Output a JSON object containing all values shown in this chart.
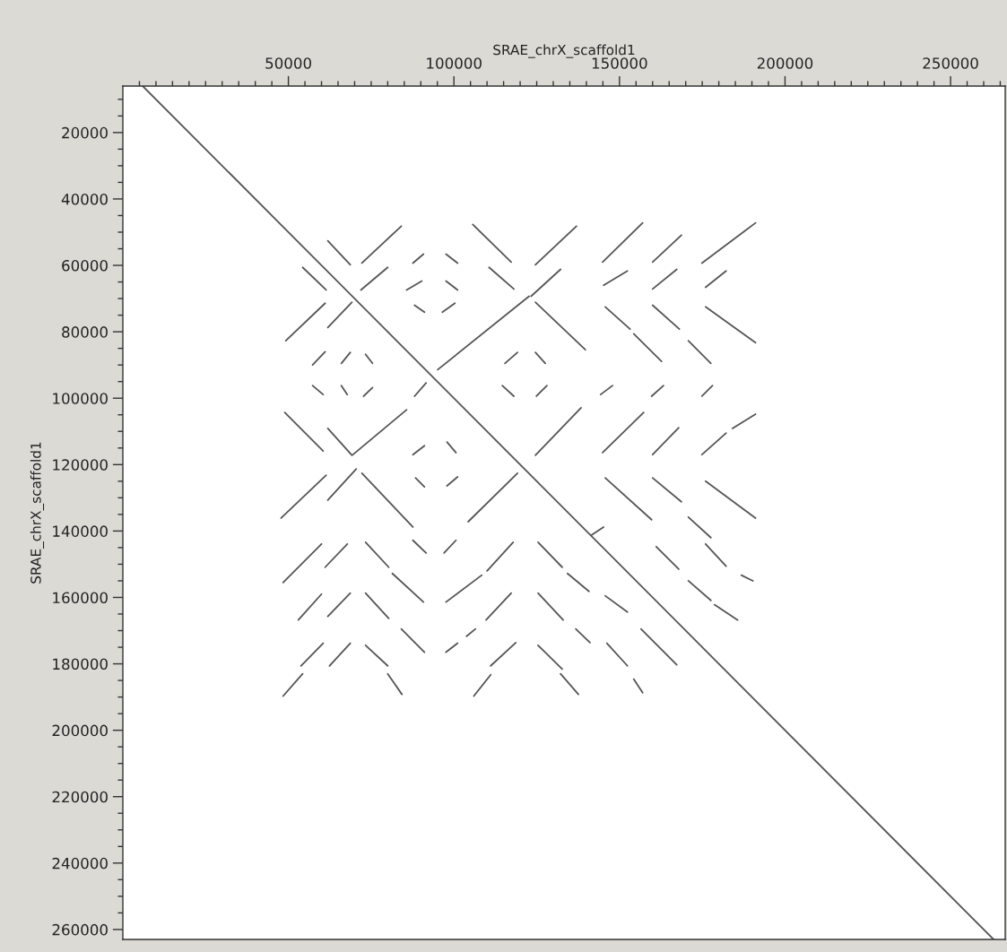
{
  "chart_data": {
    "type": "line",
    "xlabel": "SRAE_chrX_scaffold1",
    "ylabel": "SRAE_chrX_scaffold1",
    "xlim": [
      0,
      266500
    ],
    "ylim": [
      263000,
      6000
    ],
    "xticks": [
      {
        "value": 5000,
        "label": null
      },
      {
        "value": 10000,
        "label": null
      },
      {
        "value": 15000,
        "label": null
      },
      {
        "value": 20000,
        "label": null
      },
      {
        "value": 25000,
        "label": null
      },
      {
        "value": 30000,
        "label": null
      },
      {
        "value": 35000,
        "label": null
      },
      {
        "value": 40000,
        "label": null
      },
      {
        "value": 45000,
        "label": null
      },
      50000,
      {
        "value": 55000,
        "label": null
      },
      {
        "value": 60000,
        "label": null
      },
      {
        "value": 65000,
        "label": null
      },
      {
        "value": 70000,
        "label": null
      },
      {
        "value": 75000,
        "label": null
      },
      {
        "value": 80000,
        "label": null
      },
      {
        "value": 85000,
        "label": null
      },
      {
        "value": 90000,
        "label": null
      },
      {
        "value": 95000,
        "label": null
      },
      100000,
      {
        "value": 105000,
        "label": null
      },
      {
        "value": 110000,
        "label": null
      },
      {
        "value": 115000,
        "label": null
      },
      {
        "value": 120000,
        "label": null
      },
      {
        "value": 125000,
        "label": null
      },
      {
        "value": 130000,
        "label": null
      },
      {
        "value": 135000,
        "label": null
      },
      {
        "value": 140000,
        "label": null
      },
      {
        "value": 145000,
        "label": null
      },
      150000,
      {
        "value": 155000,
        "label": null
      },
      {
        "value": 160000,
        "label": null
      },
      {
        "value": 165000,
        "label": null
      },
      {
        "value": 170000,
        "label": null
      },
      {
        "value": 175000,
        "label": null
      },
      {
        "value": 180000,
        "label": null
      },
      {
        "value": 185000,
        "label": null
      },
      {
        "value": 190000,
        "label": null
      },
      {
        "value": 195000,
        "label": null
      },
      200000,
      {
        "value": 205000,
        "label": null
      },
      {
        "value": 210000,
        "label": null
      },
      {
        "value": 215000,
        "label": null
      },
      {
        "value": 220000,
        "label": null
      },
      {
        "value": 225000,
        "label": null
      },
      {
        "value": 230000,
        "label": null
      },
      {
        "value": 235000,
        "label": null
      },
      {
        "value": 240000,
        "label": null
      },
      {
        "value": 245000,
        "label": null
      },
      250000,
      {
        "value": 255000,
        "label": null
      },
      {
        "value": 260000,
        "label": null
      },
      {
        "value": 265000,
        "label": null
      }
    ],
    "yticks": [
      {
        "value": 10000,
        "label": null
      },
      {
        "value": 15000,
        "label": null
      },
      20000,
      {
        "value": 25000,
        "label": null
      },
      {
        "value": 30000,
        "label": null
      },
      {
        "value": 35000,
        "label": null
      },
      40000,
      {
        "value": 45000,
        "label": null
      },
      {
        "value": 50000,
        "label": null
      },
      {
        "value": 55000,
        "label": null
      },
      60000,
      {
        "value": 65000,
        "label": null
      },
      {
        "value": 70000,
        "label": null
      },
      {
        "value": 75000,
        "label": null
      },
      80000,
      {
        "value": 85000,
        "label": null
      },
      {
        "value": 90000,
        "label": null
      },
      {
        "value": 95000,
        "label": null
      },
      100000,
      {
        "value": 105000,
        "label": null
      },
      {
        "value": 110000,
        "label": null
      },
      {
        "value": 115000,
        "label": null
      },
      120000,
      {
        "value": 125000,
        "label": null
      },
      {
        "value": 130000,
        "label": null
      },
      {
        "value": 135000,
        "label": null
      },
      140000,
      {
        "value": 145000,
        "label": null
      },
      {
        "value": 150000,
        "label": null
      },
      {
        "value": 155000,
        "label": null
      },
      160000,
      {
        "value": 165000,
        "label": null
      },
      {
        "value": 170000,
        "label": null
      },
      {
        "value": 175000,
        "label": null
      },
      180000,
      {
        "value": 185000,
        "label": null
      },
      {
        "value": 190000,
        "label": null
      },
      {
        "value": 195000,
        "label": null
      },
      200000,
      {
        "value": 205000,
        "label": null
      },
      {
        "value": 210000,
        "label": null
      },
      {
        "value": 215000,
        "label": null
      },
      220000,
      {
        "value": 225000,
        "label": null
      },
      {
        "value": 230000,
        "label": null
      },
      {
        "value": 235000,
        "label": null
      },
      240000,
      {
        "value": 245000,
        "label": null
      },
      {
        "value": 250000,
        "label": null
      },
      {
        "value": 255000,
        "label": null
      },
      260000
    ],
    "series": [
      {
        "color": "#555555",
        "x": [
          6000,
          263000
        ],
        "values": [
          6000,
          263000
        ]
      },
      {
        "color": "#555555",
        "x": [
          61900,
          68700
        ],
        "values": [
          52600,
          59800
        ]
      },
      {
        "color": "#555555",
        "x": [
          72200,
          84100
        ],
        "values": [
          59300,
          48200
        ]
      },
      {
        "color": "#555555",
        "x": [
          87600,
          90800
        ],
        "values": [
          59300,
          56600
        ]
      },
      {
        "color": "#555555",
        "x": [
          97600,
          101100
        ],
        "values": [
          56600,
          59300
        ]
      },
      {
        "color": "#555555",
        "x": [
          105700,
          117300
        ],
        "values": [
          47700,
          59000
        ]
      },
      {
        "color": "#555555",
        "x": [
          124600,
          137000
        ],
        "values": [
          59800,
          48200
        ]
      },
      {
        "color": "#555555",
        "x": [
          144900,
          157000
        ],
        "values": [
          59000,
          47200
        ]
      },
      {
        "color": "#555555",
        "x": [
          160000,
          168700
        ],
        "values": [
          59000,
          50900
        ]
      },
      {
        "color": "#555555",
        "x": [
          174900,
          191100
        ],
        "values": [
          59300,
          47200
        ]
      },
      {
        "color": "#555555",
        "x": [
          54300,
          61400
        ],
        "values": [
          60600,
          67400
        ]
      },
      {
        "color": "#555555",
        "x": [
          71900,
          80000
        ],
        "values": [
          67400,
          60600
        ]
      },
      {
        "color": "#555555",
        "x": [
          85700,
          90300
        ],
        "values": [
          67400,
          64700
        ]
      },
      {
        "color": "#555555",
        "x": [
          97600,
          101100
        ],
        "values": [
          64700,
          67400
        ]
      },
      {
        "color": "#555555",
        "x": [
          110600,
          118100
        ],
        "values": [
          60600,
          67100
        ]
      },
      {
        "color": "#555555",
        "x": [
          123300,
          132200
        ],
        "values": [
          69300,
          61200
        ]
      },
      {
        "color": "#555555",
        "x": [
          145200,
          152400
        ],
        "values": [
          66000,
          61700
        ]
      },
      {
        "color": "#555555",
        "x": [
          160000,
          167300
        ],
        "values": [
          67100,
          61200
        ]
      },
      {
        "color": "#555555",
        "x": [
          176000,
          182200
        ],
        "values": [
          66600,
          61700
        ]
      },
      {
        "color": "#555555",
        "x": [
          49200,
          61100
        ],
        "values": [
          82700,
          71400
        ]
      },
      {
        "color": "#555555",
        "x": [
          61900,
          69200
        ],
        "values": [
          78700,
          71100
        ]
      },
      {
        "color": "#555555",
        "x": [
          88100,
          91100
        ],
        "values": [
          72000,
          74100
        ]
      },
      {
        "color": "#555555",
        "x": [
          96500,
          100300
        ],
        "values": [
          74100,
          71400
        ]
      },
      {
        "color": "#555555",
        "x": [
          124600,
          139700
        ],
        "values": [
          71100,
          85400
        ]
      },
      {
        "color": "#555555",
        "x": [
          145700,
          153200
        ],
        "values": [
          72500,
          79200
        ]
      },
      {
        "color": "#555555",
        "x": [
          154300,
          162700
        ],
        "values": [
          80600,
          88900
        ]
      },
      {
        "color": "#555555",
        "x": [
          160000,
          168100
        ],
        "values": [
          72000,
          79200
        ]
      },
      {
        "color": "#555555",
        "x": [
          170800,
          177600
        ],
        "values": [
          82700,
          89500
        ]
      },
      {
        "color": "#555555",
        "x": [
          176000,
          191100
        ],
        "values": [
          72500,
          83300
        ]
      },
      {
        "color": "#555555",
        "x": [
          95100,
          122700
        ],
        "values": [
          91400,
          69300
        ]
      },
      {
        "color": "#555555",
        "x": [
          57300,
          61100
        ],
        "values": [
          90000,
          86000
        ]
      },
      {
        "color": "#555555",
        "x": [
          66000,
          68700
        ],
        "values": [
          89500,
          86200
        ]
      },
      {
        "color": "#555555",
        "x": [
          73300,
          75400
        ],
        "values": [
          86800,
          89500
        ]
      },
      {
        "color": "#555555",
        "x": [
          57300,
          60500
        ],
        "values": [
          96200,
          98900
        ]
      },
      {
        "color": "#555555",
        "x": [
          66000,
          67800
        ],
        "values": [
          96200,
          98900
        ]
      },
      {
        "color": "#555555",
        "x": [
          72700,
          75400
        ],
        "values": [
          99400,
          96800
        ]
      },
      {
        "color": "#555555",
        "x": [
          115400,
          119200
        ],
        "values": [
          89500,
          86200
        ]
      },
      {
        "color": "#555555",
        "x": [
          124600,
          127600
        ],
        "values": [
          86200,
          89500
        ]
      },
      {
        "color": "#555555",
        "x": [
          114600,
          118100
        ],
        "values": [
          96200,
          99400
        ]
      },
      {
        "color": "#555555",
        "x": [
          124900,
          128100
        ],
        "values": [
          99400,
          96200
        ]
      },
      {
        "color": "#555555",
        "x": [
          88100,
          91600
        ],
        "values": [
          99400,
          95400
        ]
      },
      {
        "color": "#555555",
        "x": [
          144300,
          147900
        ],
        "values": [
          98900,
          96200
        ]
      },
      {
        "color": "#555555",
        "x": [
          159700,
          163300
        ],
        "values": [
          99400,
          96200
        ]
      },
      {
        "color": "#555555",
        "x": [
          174900,
          178100
        ],
        "values": [
          99400,
          96200
        ]
      },
      {
        "color": "#555555",
        "x": [
          48900,
          60500
        ],
        "values": [
          104300,
          115900
        ]
      },
      {
        "color": "#555555",
        "x": [
          61900,
          69200
        ],
        "values": [
          109100,
          117200
        ]
      },
      {
        "color": "#555555",
        "x": [
          69500,
          85700
        ],
        "values": [
          117000,
          103500
        ]
      },
      {
        "color": "#555555",
        "x": [
          87600,
          91100
        ],
        "values": [
          117000,
          114300
        ]
      },
      {
        "color": "#555555",
        "x": [
          97900,
          100600
        ],
        "values": [
          113200,
          116400
        ]
      },
      {
        "color": "#555555",
        "x": [
          124600,
          138400
        ],
        "values": [
          117200,
          102900
        ]
      },
      {
        "color": "#555555",
        "x": [
          144900,
          157300
        ],
        "values": [
          116400,
          104300
        ]
      },
      {
        "color": "#555555",
        "x": [
          160000,
          167900
        ],
        "values": [
          117000,
          108900
        ]
      },
      {
        "color": "#555555",
        "x": [
          174900,
          182200
        ],
        "values": [
          117000,
          110500
        ]
      },
      {
        "color": "#555555",
        "x": [
          184100,
          191100
        ],
        "values": [
          109100,
          104800
        ]
      },
      {
        "color": "#555555",
        "x": [
          145700,
          159700
        ],
        "values": [
          124000,
          136600
        ]
      },
      {
        "color": "#555555",
        "x": [
          160000,
          168700
        ],
        "values": [
          124000,
          131200
        ]
      },
      {
        "color": "#555555",
        "x": [
          176000,
          191100
        ],
        "values": [
          125000,
          136100
        ]
      },
      {
        "color": "#555555",
        "x": [
          170800,
          177600
        ],
        "values": [
          135800,
          142000
        ]
      },
      {
        "color": "#555555",
        "x": [
          47800,
          61400
        ],
        "values": [
          136100,
          123200
        ]
      },
      {
        "color": "#555555",
        "x": [
          61900,
          70500
        ],
        "values": [
          130700,
          121300
        ]
      },
      {
        "color": "#555555",
        "x": [
          72200,
          87600
        ],
        "values": [
          122600,
          138800
        ]
      },
      {
        "color": "#555555",
        "x": [
          88400,
          91100
        ],
        "values": [
          124000,
          126700
        ]
      },
      {
        "color": "#555555",
        "x": [
          97900,
          101100
        ],
        "values": [
          126400,
          123700
        ]
      },
      {
        "color": "#555555",
        "x": [
          104300,
          119200
        ],
        "values": [
          137200,
          122600
        ]
      },
      {
        "color": "#555555",
        "x": [
          87600,
          91600
        ],
        "values": [
          142800,
          146600
        ]
      },
      {
        "color": "#555555",
        "x": [
          97000,
          100600
        ],
        "values": [
          146600,
          142800
        ]
      },
      {
        "color": "#555555",
        "x": [
          48400,
          60000
        ],
        "values": [
          155500,
          143900
        ]
      },
      {
        "color": "#555555",
        "x": [
          61100,
          67800
        ],
        "values": [
          150900,
          143900
        ]
      },
      {
        "color": "#555555",
        "x": [
          73300,
          80300
        ],
        "values": [
          143400,
          150900
        ]
      },
      {
        "color": "#555555",
        "x": [
          81400,
          90800
        ],
        "values": [
          152800,
          161400
        ]
      },
      {
        "color": "#555555",
        "x": [
          110000,
          117900
        ],
        "values": [
          152000,
          143400
        ]
      },
      {
        "color": "#555555",
        "x": [
          97600,
          108400
        ],
        "values": [
          161400,
          153300
        ]
      },
      {
        "color": "#555555",
        "x": [
          125400,
          132700
        ],
        "values": [
          143400,
          150900
        ]
      },
      {
        "color": "#555555",
        "x": [
          134300,
          140800
        ],
        "values": [
          152800,
          158200
        ]
      },
      {
        "color": "#555555",
        "x": [
          145700,
          152400
        ],
        "values": [
          159500,
          164400
        ]
      },
      {
        "color": "#555555",
        "x": [
          53000,
          60000
        ],
        "values": [
          166800,
          159000
        ]
      },
      {
        "color": "#555555",
        "x": [
          61900,
          68700
        ],
        "values": [
          165700,
          158700
        ]
      },
      {
        "color": "#555555",
        "x": [
          73300,
          80300
        ],
        "values": [
          158700,
          166300
        ]
      },
      {
        "color": "#555555",
        "x": [
          84100,
          91100
        ],
        "values": [
          169500,
          176500
        ]
      },
      {
        "color": "#555555",
        "x": [
          103800,
          106500
        ],
        "values": [
          171700,
          169500
        ]
      },
      {
        "color": "#555555",
        "x": [
          109700,
          117300
        ],
        "values": [
          166800,
          158700
        ]
      },
      {
        "color": "#555555",
        "x": [
          125400,
          133000
        ],
        "values": [
          158700,
          166800
        ]
      },
      {
        "color": "#555555",
        "x": [
          136800,
          141100
        ],
        "values": [
          169500,
          173600
        ]
      },
      {
        "color": "#555555",
        "x": [
          146200,
          152400
        ],
        "values": [
          173800,
          180600
        ]
      },
      {
        "color": "#555555",
        "x": [
          97600,
          101100
        ],
        "values": [
          176500,
          173800
        ]
      },
      {
        "color": "#555555",
        "x": [
          53800,
          60500
        ],
        "values": [
          180600,
          173800
        ]
      },
      {
        "color": "#555555",
        "x": [
          62400,
          68700
        ],
        "values": [
          180600,
          173800
        ]
      },
      {
        "color": "#555555",
        "x": [
          48400,
          54300
        ],
        "values": [
          189700,
          183000
        ]
      },
      {
        "color": "#555555",
        "x": [
          73300,
          80000
        ],
        "values": [
          174400,
          180600
        ]
      },
      {
        "color": "#555555",
        "x": [
          80000,
          84300
        ],
        "values": [
          183000,
          189200
        ]
      },
      {
        "color": "#555555",
        "x": [
          111100,
          118700
        ],
        "values": [
          180600,
          173600
        ]
      },
      {
        "color": "#555555",
        "x": [
          106000,
          111100
        ],
        "values": [
          189700,
          183300
        ]
      },
      {
        "color": "#555555",
        "x": [
          125400,
          132700
        ],
        "values": [
          174400,
          181600
        ]
      },
      {
        "color": "#555555",
        "x": [
          132200,
          137600
        ],
        "values": [
          183000,
          189200
        ]
      },
      {
        "color": "#555555",
        "x": [
          161100,
          167900
        ],
        "values": [
          144700,
          151500
        ]
      },
      {
        "color": "#555555",
        "x": [
          176000,
          182200
        ],
        "values": [
          143900,
          150600
        ]
      },
      {
        "color": "#555555",
        "x": [
          186800,
          190300
        ],
        "values": [
          153300,
          155000
        ]
      },
      {
        "color": "#555555",
        "x": [
          170800,
          177600
        ],
        "values": [
          155000,
          160900
        ]
      },
      {
        "color": "#555555",
        "x": [
          178700,
          185700
        ],
        "values": [
          162200,
          166800
        ]
      },
      {
        "color": "#555555",
        "x": [
          156500,
          167300
        ],
        "values": [
          169500,
          180300
        ]
      },
      {
        "color": "#555555",
        "x": [
          154300,
          157000
        ],
        "values": [
          184600,
          188700
        ]
      },
      {
        "color": "#555555",
        "x": [
          141600,
          145200
        ],
        "values": [
          141200,
          138800
        ]
      }
    ]
  }
}
